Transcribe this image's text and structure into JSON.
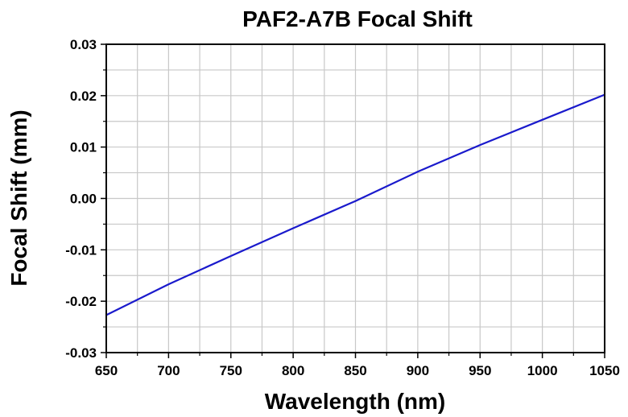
{
  "chart_data": {
    "type": "line",
    "title": "PAF2-A7B Focal Shift",
    "xlabel": "Wavelength (nm)",
    "ylabel": "Focal Shift (mm)",
    "xlim": [
      650,
      1050
    ],
    "ylim": [
      -0.03,
      0.03
    ],
    "x_ticks": [
      "650",
      "700",
      "750",
      "800",
      "850",
      "900",
      "950",
      "1000",
      "1050"
    ],
    "y_ticks": [
      "-0.03",
      "-0.02",
      "-0.01",
      "0.00",
      "0.01",
      "0.02",
      "0.03"
    ],
    "grid": true,
    "legend": "none",
    "series": [
      {
        "color": "#1a1acc",
        "x": [
          650,
          700,
          750,
          800,
          850,
          900,
          950,
          1000,
          1050
        ],
        "y": [
          -0.0227,
          -0.0167,
          -0.0112,
          -0.0058,
          -0.0005,
          0.0052,
          0.0104,
          0.0153,
          0.0202
        ]
      }
    ]
  }
}
